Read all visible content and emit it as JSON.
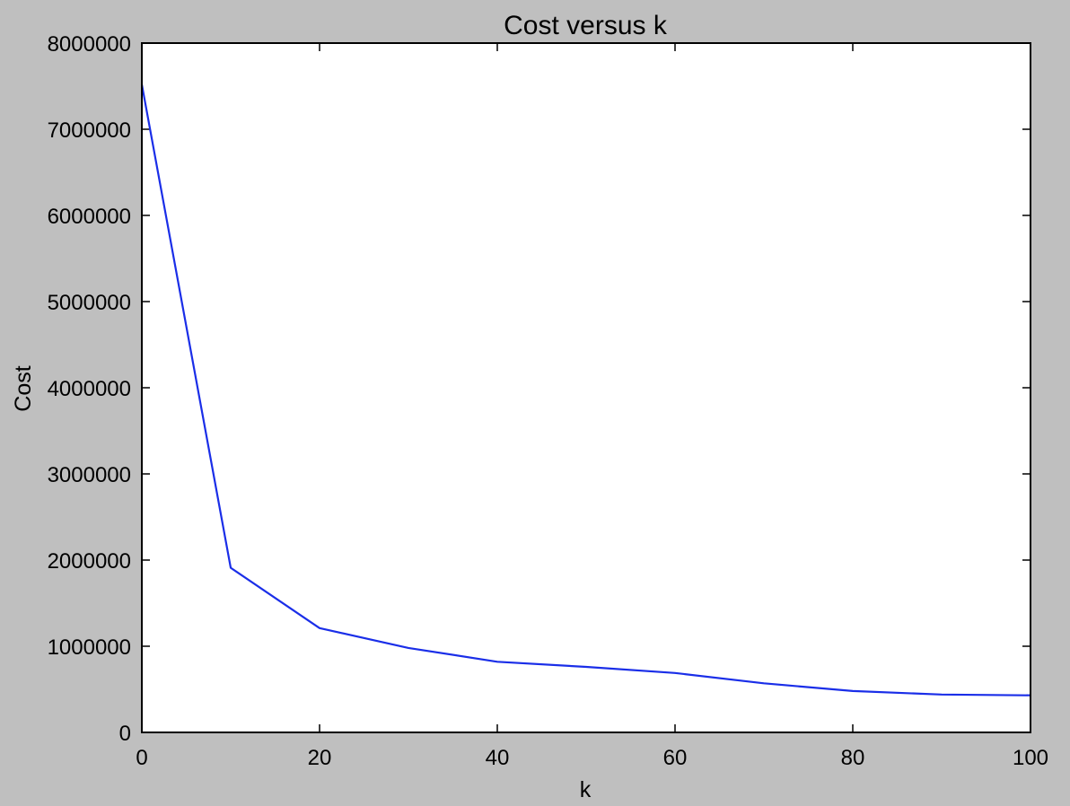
{
  "chart_data": {
    "type": "line",
    "title": "Cost versus k",
    "xlabel": "k",
    "ylabel": "Cost",
    "xlim": [
      0,
      100
    ],
    "ylim": [
      0,
      8000000
    ],
    "xticks": [
      0,
      20,
      40,
      60,
      80,
      100
    ],
    "yticks": [
      0,
      1000000,
      2000000,
      3000000,
      4000000,
      5000000,
      6000000,
      7000000,
      8000000
    ],
    "grid": false,
    "series": [
      {
        "color": "#1a2ee8",
        "x": [
          0,
          10,
          20,
          30,
          40,
          50,
          60,
          70,
          80,
          90,
          100
        ],
        "y": [
          7520000,
          1910000,
          1210000,
          980000,
          820000,
          760000,
          690000,
          570000,
          480000,
          440000,
          430000
        ]
      }
    ]
  },
  "colors": {
    "figure_background": "#bfbfbf",
    "plot_background": "#ffffff",
    "axis": "#000000"
  }
}
